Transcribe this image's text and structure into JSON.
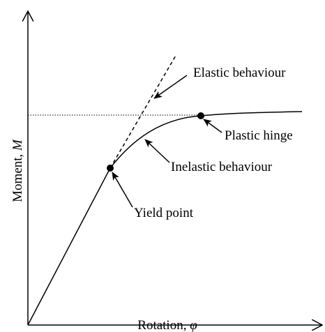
{
  "diagram": {
    "y_axis_label": {
      "text": "Moment, ",
      "symbol": "M"
    },
    "x_axis_label": {
      "text": "Rotation, ",
      "symbol": "φ"
    },
    "annotations": [
      "Elastic behaviour",
      "Plastic hinge",
      "Inelastic behaviour",
      "Yield point"
    ]
  }
}
